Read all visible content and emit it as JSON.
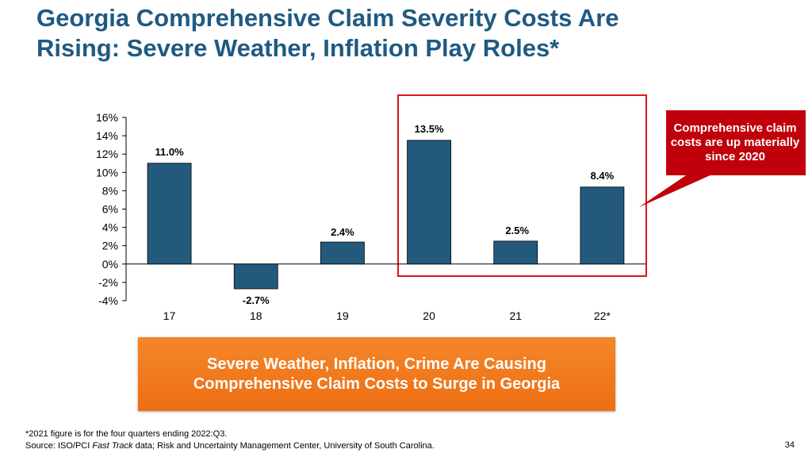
{
  "title": {
    "line1": "Georgia Comprehensive Claim Severity Costs Are",
    "line2": "Rising: Severe Weather, Inflation Play Roles*"
  },
  "callout": {
    "text": "Comprehensive claim costs are up materially since 2020"
  },
  "banner": {
    "line1": "Severe Weather, Inflation, Crime Are Causing",
    "line2": "Comprehensive Claim Costs to Surge in Georgia"
  },
  "footnote": {
    "note": "*2021 figure is for the four quarters ending 2022:Q3.",
    "source_prefix": "Source: ISO/PCI ",
    "source_italic": "Fast Track",
    "source_suffix": " data; Risk and Uncertainty Management Center, University of South Carolina."
  },
  "page_number": "34",
  "colors": {
    "bar": "#235a7c",
    "highlight_box": "#d9161c",
    "callout": "#c0000b",
    "title": "#1f5a82"
  },
  "chart_data": {
    "type": "bar",
    "categories": [
      "17",
      "18",
      "19",
      "20",
      "21",
      "22*"
    ],
    "values": [
      11.0,
      -2.7,
      2.4,
      13.5,
      2.5,
      8.4
    ],
    "labels": [
      "11.0%",
      "-2.7%",
      "2.4%",
      "13.5%",
      "2.5%",
      "8.4%"
    ],
    "yticks": [
      "16%",
      "14%",
      "12%",
      "10%",
      "8%",
      "6%",
      "4%",
      "2%",
      "0%",
      "-2%",
      "-4%"
    ],
    "ylim": [
      -4,
      16
    ],
    "ytick_step": 2,
    "highlighted_categories": [
      "20",
      "21",
      "22*"
    ]
  }
}
